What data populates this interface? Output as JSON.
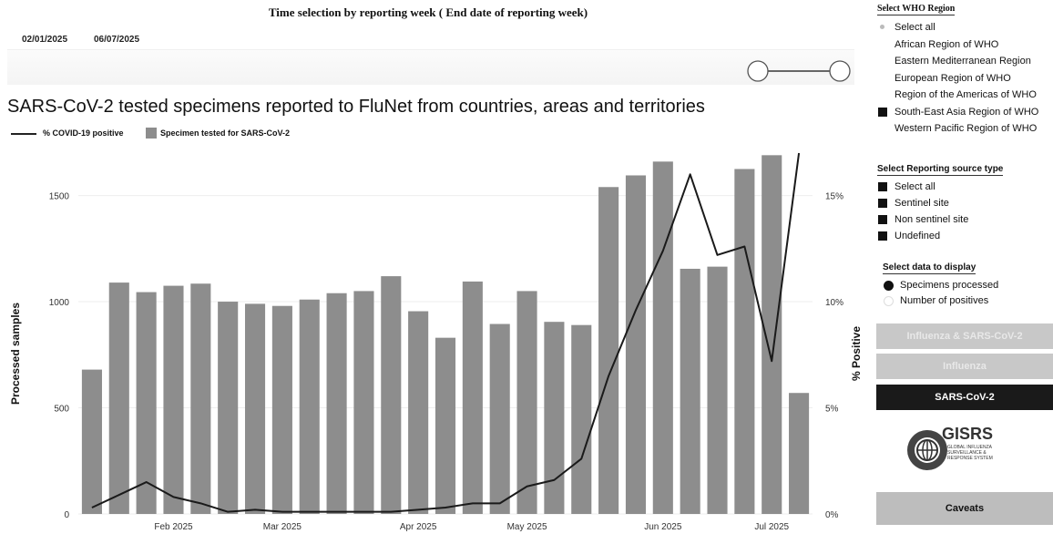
{
  "time_selection": {
    "title": "Time selection by reporting week ( End date of reporting week)",
    "start_date": "02/01/2025",
    "end_date": "06/07/2025"
  },
  "main_title": "SARS-CoV-2 tested specimens reported to FluNet from countries, areas and territories",
  "legend": {
    "line_label": "% COVID-19 positive",
    "bar_label": "Specimen tested for SARS-CoV-2"
  },
  "filters": {
    "region": {
      "title": "Select WHO Region",
      "options": [
        {
          "label": "Select all",
          "state": "partial"
        },
        {
          "label": "African Region of WHO",
          "state": "off"
        },
        {
          "label": "Eastern Mediterranean Region",
          "state": "off"
        },
        {
          "label": "European Region of WHO",
          "state": "off"
        },
        {
          "label": "Region of the Americas of WHO",
          "state": "off"
        },
        {
          "label": "South-East Asia Region of WHO",
          "state": "on"
        },
        {
          "label": "Western Pacific Region of WHO",
          "state": "off"
        }
      ]
    },
    "source": {
      "title": "Select Reporting source type",
      "options": [
        {
          "label": "Select all",
          "state": "on"
        },
        {
          "label": "Sentinel site",
          "state": "on"
        },
        {
          "label": "Non sentinel site",
          "state": "on"
        },
        {
          "label": "Undefined",
          "state": "on"
        }
      ]
    },
    "display": {
      "title": "Select data to display",
      "options": [
        {
          "label": "Specimens processed",
          "state": "on"
        },
        {
          "label": "Number of positives",
          "state": "off"
        }
      ]
    }
  },
  "buttons": {
    "flu_sars": "Influenza & SARS-CoV-2",
    "influenza": "Influenza",
    "sars": "SARS-CoV-2",
    "caveats": "Caveats"
  },
  "logo": {
    "name": "GISRS",
    "line1": "GLOBAL INFLUENZA",
    "line2": "SURVEILLANCE &",
    "line3": "RESPONSE SYSTEM"
  },
  "colors": {
    "bar": "#8d8d8d",
    "line": "#1a1a1a",
    "active_button": "#1a1a1a"
  },
  "chart_data": {
    "type": "bar+line",
    "title": "",
    "xlabel": "",
    "ylabel": "Processed samples",
    "ylabel_right": "% Positive",
    "ylim": [
      0,
      1700
    ],
    "ylim_right": [
      0,
      17
    ],
    "yticks": [
      0,
      500,
      1000,
      1500
    ],
    "yticks_right": [
      "0%",
      "5%",
      "10%",
      "15%"
    ],
    "x_tick_labels": [
      "Feb 2025",
      "Mar 2025",
      "Apr 2025",
      "May 2025",
      "Jun 2025",
      "Jul 2025"
    ],
    "x_tick_after_bar_index": [
      3,
      7,
      12,
      16,
      21,
      25
    ],
    "weeks": 27,
    "series": [
      {
        "name": "Specimen tested for SARS-CoV-2",
        "kind": "bar",
        "values": [
          680,
          1090,
          1045,
          1075,
          1085,
          1000,
          990,
          980,
          1010,
          1040,
          1050,
          1120,
          955,
          830,
          1095,
          895,
          1050,
          905,
          890,
          1540,
          1595,
          1660,
          1155,
          1165,
          1625,
          1690,
          570
        ]
      },
      {
        "name": "% COVID-19 positive",
        "kind": "line",
        "values": [
          0.3,
          0.9,
          1.5,
          0.8,
          0.5,
          0.1,
          0.2,
          0.1,
          0.1,
          0.1,
          0.1,
          0.1,
          0.2,
          0.3,
          0.5,
          0.5,
          1.3,
          1.6,
          2.6,
          6.5,
          9.6,
          12.4,
          16.0,
          12.2,
          12.6,
          7.2,
          17.0
        ]
      }
    ]
  }
}
